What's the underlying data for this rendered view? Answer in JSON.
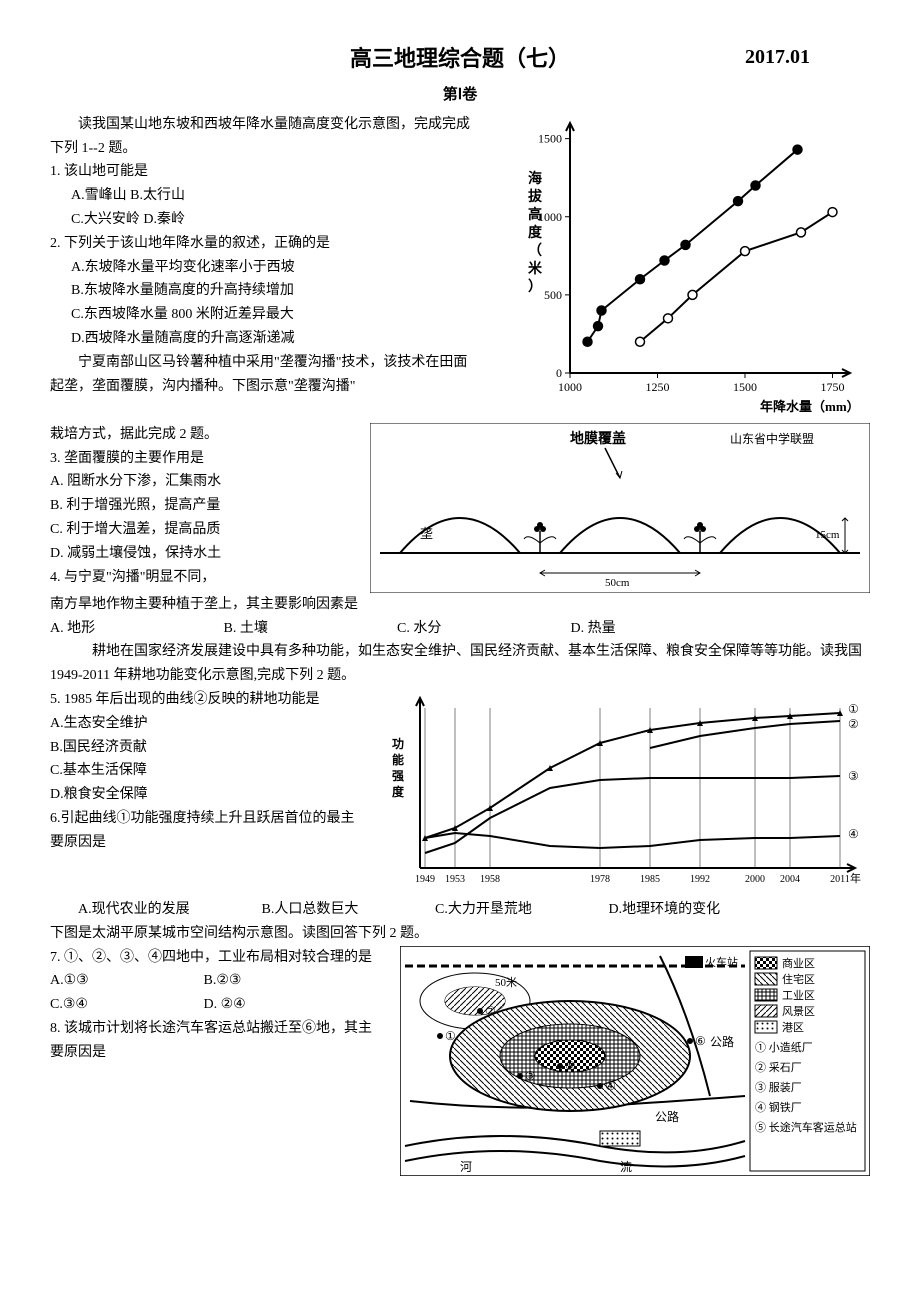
{
  "header": {
    "title": "高三地理综合题（七）",
    "date": "2017.01",
    "subtitle": "第Ⅰ卷"
  },
  "block1": {
    "intro": "读我国某山地东坡和西坡年降水量随高度变化示意图，完成完成下列 1--2 题。",
    "q1": {
      "stem": "1.  该山地可能是",
      "a": "A.雪峰山",
      "b": "B.太行山",
      "c": "C.大兴安岭",
      "d": "D.秦岭"
    },
    "q2": {
      "stem": "2.  下列关于该山地年降水量的叙述，正确的是",
      "a": "A.东坡降水量平均变化速率小于西坡",
      "b": "B.东坡降水量随高度的升高持续增加",
      "c": "C.东西坡降水量 800 米附近差异最大",
      "d": "D.西坡降水量随高度的升高逐渐递减"
    },
    "intro2a": "宁夏南部山区马铃薯种植中采用\"垄覆沟播\"技术，该技术在田面起垄，垄面覆膜，沟内播种。下图示意\"垄覆沟播\"",
    "chart1": {
      "xlabel": "年降水量（mm）",
      "ylabel": "海拔高度（米）",
      "xticks": [
        "1000",
        "1250",
        "1500",
        "1750"
      ],
      "yticks": [
        "0",
        "500",
        "1000",
        "1500"
      ],
      "xlim": [
        1000,
        1800
      ],
      "ylim": [
        0,
        1600
      ],
      "series1": {
        "marker": "filled-circle",
        "color": "#000000",
        "points": [
          [
            1050,
            200
          ],
          [
            1080,
            300
          ],
          [
            1090,
            400
          ],
          [
            1200,
            600
          ],
          [
            1270,
            720
          ],
          [
            1330,
            820
          ],
          [
            1480,
            1100
          ],
          [
            1530,
            1200
          ],
          [
            1650,
            1430
          ]
        ]
      },
      "series2": {
        "marker": "open-circle",
        "color": "#000000",
        "points": [
          [
            1200,
            200
          ],
          [
            1280,
            350
          ],
          [
            1350,
            500
          ],
          [
            1500,
            780
          ],
          [
            1660,
            900
          ],
          [
            1750,
            1030
          ]
        ]
      },
      "background": "#ffffff",
      "axis_color": "#000000"
    }
  },
  "block2": {
    "line1": "栽培方式，据此完成 2 题。",
    "q3": {
      "stem": "3.  垄面覆膜的主要作用是",
      "a": "A.  阻断水分下渗，汇集雨水",
      "b": "B.  利于增强光照，提高产量",
      "c": "C.  利于增大温差，提高品质",
      "d": "D.  减弱土壤侵蚀，保持水土"
    },
    "q4": {
      "stem_a": "4.  与宁夏\"沟播\"明显不同，",
      "stem_b": "南方旱地作物主要种植于垄上，其主要影响因素是",
      "a": "A.  地形",
      "b": "B.  土壤",
      "c": "C.  水分",
      "d": "D.  热量"
    },
    "diagram": {
      "label_mulch": "地膜覆盖",
      "label_right": "山东省中学联盟",
      "height_label": "15cm",
      "width_label": "50cm",
      "ridge_label": "垄",
      "ground_color": "#000000",
      "plant_color": "#000000",
      "background": "#ffffff"
    }
  },
  "block3": {
    "intro": "耕地在国家经济发展建设中具有多种功能，如生态安全维护、国民经济贡献、基本生活保障、粮食安全保障等等功能。读我国1949-2011 年耕地功能变化示意图,完成下列 2 题。",
    "q5": {
      "stem": "5.  1985 年后出现的曲线②反映的耕地功能是",
      "a": "A.生态安全维护",
      "b": "B.国民经济贡献",
      "c": "C.基本生活保障",
      "d": "D.粮食安全保障"
    },
    "q6": {
      "stem": "6.引起曲线①功能强度持续上升且跃居首位的最主要原因是",
      "a": "A.现代农业的发展",
      "b": "B.人口总数巨大",
      "c": "C.大力开垦荒地",
      "d": "D.地理环境的变化"
    },
    "chart3": {
      "ylabel": "功能强度",
      "xlabel": "年",
      "xticks": [
        "1949",
        "1953",
        "1958",
        "1978",
        "1985",
        "1992",
        "2000",
        "2004",
        "2011"
      ],
      "series_labels": [
        "①",
        "②",
        "③",
        "④"
      ],
      "background": "#ffffff",
      "line_color": "#000000"
    }
  },
  "block4": {
    "intro": "下图是太湖平原某城市空间结构示意图。读图回答下列 2 题。",
    "q7": {
      "stem": "7.  ①、②、③、④四地中，工业布局相对较合理的是",
      "a": "A.①③",
      "b": "B.②③",
      "c": "C.③④",
      "d": "D.  ②④"
    },
    "q8": {
      "stem": "8.  该城市计划将长途汽车客运总站搬迁至⑥地，其主要原因是"
    },
    "map": {
      "labels": {
        "station": "火车站",
        "road": "公路",
        "river": "河",
        "flow": "流",
        "height": "50米"
      },
      "legend": {
        "title_items": [
          "商业区",
          "住宅区",
          "工业区",
          "风景区",
          "港区"
        ],
        "num_items": [
          "① 小造纸厂",
          "② 采石厂",
          "③ 服装厂",
          "④ 钢铁厂",
          "⑤ 长途汽车客运总站"
        ]
      },
      "points": [
        "①",
        "②",
        "③",
        "④",
        "⑤",
        "⑥"
      ],
      "background": "#ffffff",
      "line_color": "#000000"
    }
  }
}
